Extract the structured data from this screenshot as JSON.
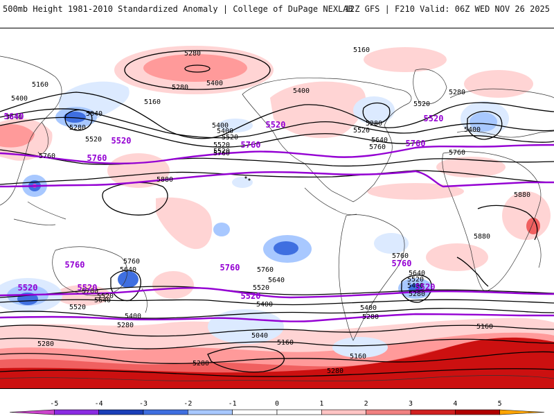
{
  "header": {
    "left": "500mb Height 1981-2010 Standardized Anomaly | College of DuPage NEXLAB",
    "right": "12Z GFS | F210 Valid: 06Z WED NOV 26 2025"
  },
  "colors": {
    "anomaly_neg": [
      "#cc44cc",
      "#8a2be2",
      "#1a3fb8",
      "#3f6fe0",
      "#a8c8ff",
      "#dceaff"
    ],
    "anomaly_pos": [
      "#ffd4d4",
      "#ff9a9a",
      "#f06060",
      "#cc1010",
      "#ff9a00",
      "#ffcc00"
    ],
    "contour": "#000000",
    "highlight_contour": "#9400d3"
  },
  "colorbar": {
    "ticks": [
      "-5",
      "-4",
      "-3",
      "-2",
      "-1",
      "0",
      "1",
      "2",
      "3",
      "4",
      "5"
    ],
    "bin_colors": [
      "#cc44cc",
      "#8a2be2",
      "#1a3fb8",
      "#3f6fe0",
      "#a8c8ff",
      "#ffffff",
      "#ffffff",
      "#ffc4c4",
      "#f08080",
      "#d02020",
      "#b00000",
      "#ffa500"
    ]
  },
  "contour_labels": {
    "l5280a": "5280",
    "l5160a": "5160",
    "l5160b": "5160",
    "l5400a": "5400",
    "l5280b": "5280",
    "l5400b": "5400",
    "l5160c": "5160",
    "l5040a": "5040",
    "l5280c": "5280",
    "l5640a": "5640",
    "l5520a": "5520",
    "l5760a": "5760",
    "l5400c": "5400",
    "l5280d": "5280",
    "l5400d": "5400",
    "l5520b": "5520",
    "l5520c": "5520",
    "l5280e": "5280",
    "l5640b": "5640",
    "l5760b": "5760",
    "l5520d": "5520",
    "l5400e": "5400",
    "l5520e": "5520",
    "l5520f": "5520",
    "l5400f": "5400",
    "l5760c": "5760",
    "l5760d": "5760",
    "l5880a": "5880",
    "l5880b": "5880",
    "l5880c": "5880",
    "l5760e": "5760",
    "l5640c": "5640",
    "l5520g": "5520",
    "l5760f": "5760",
    "l5640d": "5640",
    "l5520h": "5520",
    "l5400g": "5400",
    "l5280f": "5280",
    "l5400h": "5400",
    "l5280g": "5280",
    "l5040b": "5040",
    "l5160d": "5160",
    "l5280h": "5280",
    "l5160e": "5160",
    "l5280i": "5280",
    "l5160f": "5160",
    "l5280j": "5280",
    "l5760g": "5760",
    "l5640e": "5640",
    "l5520i": "5520",
    "l5400i": "5400",
    "l5280k": "5280",
    "l5760h": "5760",
    "l5640f": "5640",
    "l5520j": "5520",
    "l5400j": "5400"
  },
  "highlight_labels": {
    "h5640": "5640",
    "h5520a": "5520",
    "h5760a": "5760",
    "h5520b": "5520",
    "h5760b": "5760",
    "h5520c": "5520",
    "h5760c": "5760",
    "h5520d": "5520",
    "h5760d": "5760",
    "h5520e": "5520",
    "h5760e": "5760",
    "h5520f": "5520",
    "h5760f": "5760",
    "h5520g": "5520"
  }
}
